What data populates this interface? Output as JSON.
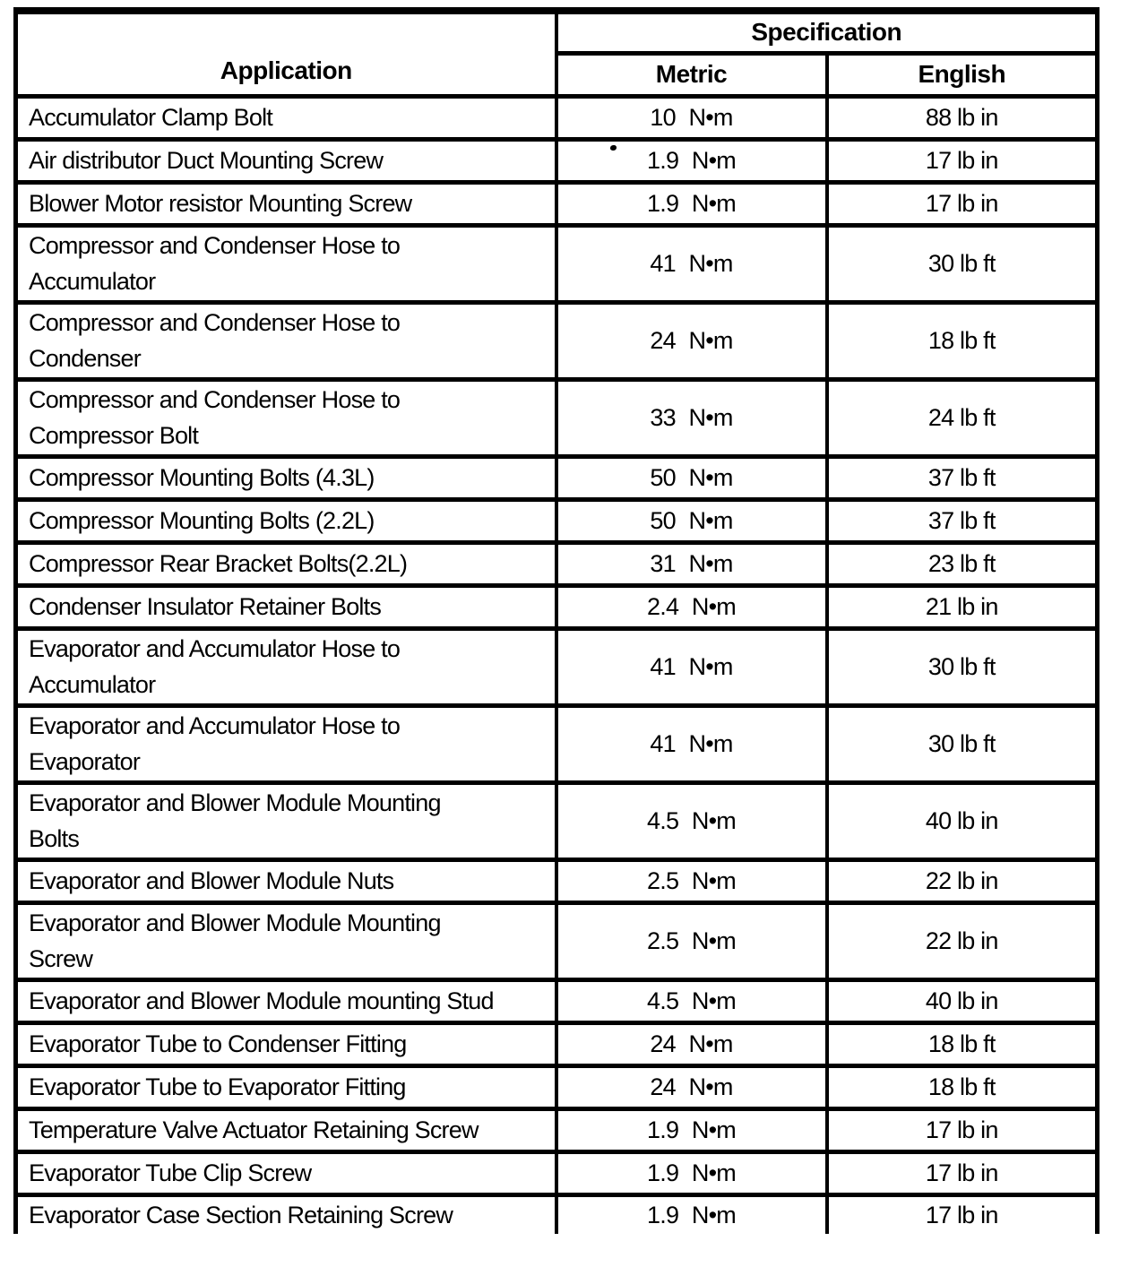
{
  "table": {
    "headers": {
      "application": "Application",
      "specification": "Specification",
      "metric": "Metric",
      "english": "English"
    },
    "rows": [
      {
        "application": "Accumulator Clamp Bolt",
        "metric": "10 N•m",
        "english": "88 lb in"
      },
      {
        "application": "Air distributor Duct Mounting Screw",
        "metric": "1.9 N•m",
        "english": "17 lb in"
      },
      {
        "application": "Blower Motor resistor Mounting Screw",
        "metric": "1.9 N•m",
        "english": "17 lb in"
      },
      {
        "application": "Compressor and Condenser Hose to\nAccumulator",
        "metric": "41 N•m",
        "english": "30 lb ft"
      },
      {
        "application": "Compressor and Condenser Hose to\nCondenser",
        "metric": "24 N•m",
        "english": "18 lb ft"
      },
      {
        "application": "Compressor and Condenser Hose to\nCompressor Bolt",
        "metric": "33 N•m",
        "english": "24 lb ft"
      },
      {
        "application": "Compressor Mounting Bolts (4.3L)",
        "metric": "50 N•m",
        "english": "37 lb ft"
      },
      {
        "application": "Compressor Mounting Bolts (2.2L)",
        "metric": "50 N•m",
        "english": "37 lb ft"
      },
      {
        "application": "Compressor Rear Bracket Bolts(2.2L)",
        "metric": "31 N•m",
        "english": "23 lb ft"
      },
      {
        "application": "Condenser Insulator Retainer Bolts",
        "metric": "2.4 N•m",
        "english": "21 lb in"
      },
      {
        "application": "Evaporator and Accumulator Hose to\nAccumulator",
        "metric": "41 N•m",
        "english": "30 lb ft"
      },
      {
        "application": "Evaporator and Accumulator Hose to\nEvaporator",
        "metric": "41 N•m",
        "english": "30 lb ft"
      },
      {
        "application": "Evaporator and Blower Module Mounting\nBolts",
        "metric": "4.5 N•m",
        "english": "40 lb in"
      },
      {
        "application": "Evaporator and Blower Module Nuts",
        "metric": "2.5 N•m",
        "english": "22 lb in"
      },
      {
        "application": "Evaporator and Blower Module Mounting\nScrew",
        "metric": "2.5 N•m",
        "english": "22 lb in"
      },
      {
        "application": "Evaporator and Blower Module mounting Stud",
        "metric": "4.5 N•m",
        "english": "40 lb in"
      },
      {
        "application": "Evaporator Tube to Condenser Fitting",
        "metric": "24 N•m",
        "english": "18 lb ft"
      },
      {
        "application": "Evaporator Tube to Evaporator Fitting",
        "metric": "24 N•m",
        "english": "18 lb ft"
      },
      {
        "application": "Temperature Valve Actuator Retaining Screw",
        "metric": "1.9 N•m",
        "english": "17 lb in"
      },
      {
        "application": "Evaporator Tube Clip Screw",
        "metric": "1.9 N•m",
        "english": "17 lb in"
      },
      {
        "application": "Evaporator Case Section Retaining Screw",
        "metric": "1.9 N•m",
        "english": "17 lb in"
      }
    ]
  }
}
